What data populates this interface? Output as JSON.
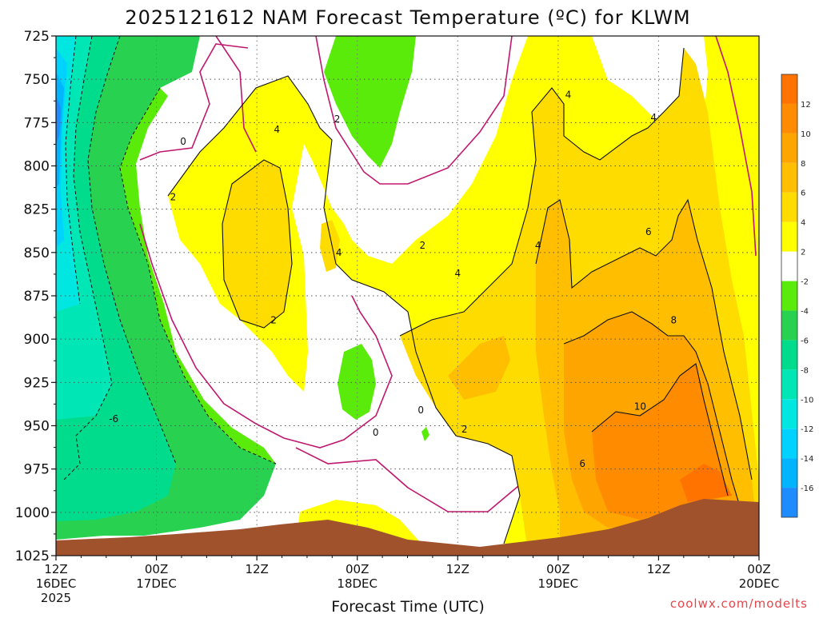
{
  "chart_data": {
    "type": "heatmap",
    "title": "2025121612 NAM Forecast Temperature (ºC) for KLWM",
    "xlabel": "Forecast Time (UTC)",
    "ylabel": "",
    "x_ticks": [
      {
        "label": "12Z",
        "sub": "16DEC",
        "sub2": "2025",
        "hour": 0
      },
      {
        "label": "00Z",
        "sub": "17DEC",
        "sub2": "",
        "hour": 12
      },
      {
        "label": "12Z",
        "sub": "",
        "sub2": "",
        "hour": 24
      },
      {
        "label": "00Z",
        "sub": "18DEC",
        "sub2": "",
        "hour": 36
      },
      {
        "label": "12Z",
        "sub": "",
        "sub2": "",
        "hour": 48
      },
      {
        "label": "00Z",
        "sub": "19DEC",
        "sub2": "",
        "hour": 60
      },
      {
        "label": "12Z",
        "sub": "",
        "sub2": "",
        "hour": 72
      },
      {
        "label": "00Z",
        "sub": "20DEC",
        "sub2": "",
        "hour": 84
      }
    ],
    "x_range_hours": [
      0,
      84
    ],
    "y_ticks": [
      "725",
      "750",
      "775",
      "800",
      "825",
      "850",
      "875",
      "900",
      "925",
      "950",
      "975",
      "1000",
      "1025"
    ],
    "y_range_hpa": [
      725,
      1025
    ],
    "y_scale": "pressure",
    "grid": true,
    "colorbar": {
      "placement": "right",
      "bins": [
        {
          "lo": -18,
          "hi": -16,
          "color": "#1e8cff",
          "label": "-16"
        },
        {
          "lo": -16,
          "hi": -14,
          "color": "#00b4ff",
          "label": "-14"
        },
        {
          "lo": -14,
          "hi": -12,
          "color": "#00d2ff",
          "label": "-12"
        },
        {
          "lo": -12,
          "hi": -10,
          "color": "#00e6e0",
          "label": "-10"
        },
        {
          "lo": -10,
          "hi": -8,
          "color": "#00e6b4",
          "label": "-8"
        },
        {
          "lo": -8,
          "hi": -6,
          "color": "#00dc8c",
          "label": "-6"
        },
        {
          "lo": -6,
          "hi": -4,
          "color": "#28d250",
          "label": "-4"
        },
        {
          "lo": -4,
          "hi": -2,
          "color": "#5aeb0a",
          "label": "-2"
        },
        {
          "lo": -2,
          "hi": 2,
          "color": "#ffffff",
          "label": "2"
        },
        {
          "lo": 2,
          "hi": 4,
          "color": "#ffff00",
          "label": "4"
        },
        {
          "lo": 4,
          "hi": 6,
          "color": "#ffdc00",
          "label": "6"
        },
        {
          "lo": 6,
          "hi": 8,
          "color": "#ffbe00",
          "label": "8"
        },
        {
          "lo": 8,
          "hi": 10,
          "color": "#ffa500",
          "label": "10"
        },
        {
          "lo": 10,
          "hi": 12,
          "color": "#ff8c00",
          "label": "12"
        },
        {
          "lo": 12,
          "hi": 14,
          "color": "#ff7300",
          "label": ""
        }
      ]
    },
    "contour_labels": [
      {
        "text": "0",
        "hour": 15.2,
        "hpa": 786
      },
      {
        "text": "2",
        "hour": 14.0,
        "hpa": 818
      },
      {
        "text": "4",
        "hour": 26.4,
        "hpa": 779
      },
      {
        "text": "2",
        "hour": 33.6,
        "hpa": 773
      },
      {
        "text": "4",
        "hour": 33.8,
        "hpa": 850
      },
      {
        "text": "2",
        "hour": 26.0,
        "hpa": 889
      },
      {
        "text": "2",
        "hour": 43.8,
        "hpa": 846
      },
      {
        "text": "4",
        "hour": 48.0,
        "hpa": 862
      },
      {
        "text": "4",
        "hour": 57.6,
        "hpa": 846
      },
      {
        "text": "4",
        "hour": 61.2,
        "hpa": 759
      },
      {
        "text": "4",
        "hour": 71.4,
        "hpa": 772
      },
      {
        "text": "6",
        "hour": 70.8,
        "hpa": 838
      },
      {
        "text": "8",
        "hour": 73.8,
        "hpa": 889
      },
      {
        "text": "10",
        "hour": 69.8,
        "hpa": 939
      },
      {
        "text": "6",
        "hour": 62.9,
        "hpa": 972
      },
      {
        "text": "0",
        "hour": 43.6,
        "hpa": 941
      },
      {
        "text": "0",
        "hour": 38.2,
        "hpa": 954
      },
      {
        "text": "2",
        "hour": 48.8,
        "hpa": 952
      },
      {
        "text": "-6",
        "hour": 6.9,
        "hpa": 946
      }
    ]
  },
  "credit": "coolwx.com/modelts"
}
